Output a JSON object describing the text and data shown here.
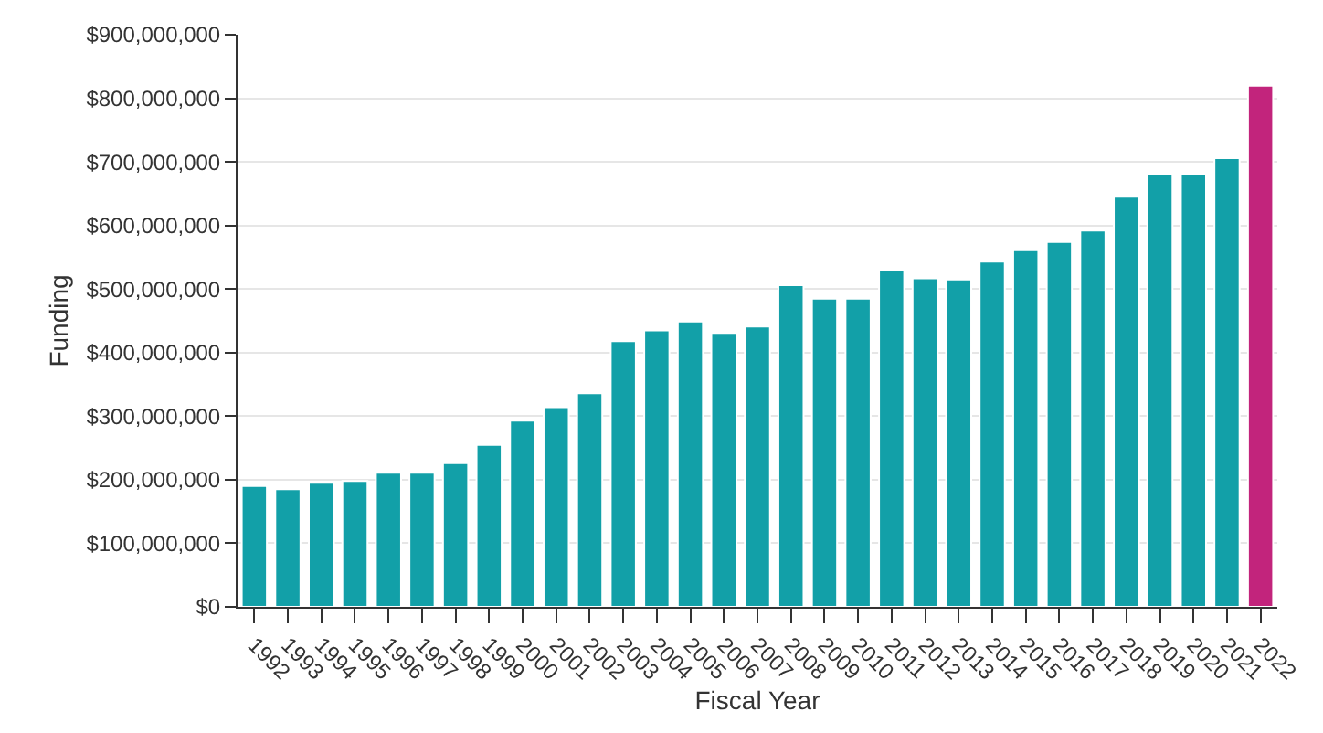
{
  "chart_data": {
    "type": "bar",
    "xlabel": "Fiscal Year",
    "ylabel": "Funding",
    "categories": [
      "1992",
      "1993",
      "1994",
      "1995",
      "1996",
      "1997",
      "1998",
      "1999",
      "2000",
      "2001",
      "2002",
      "2003",
      "2004",
      "2005",
      "2006",
      "2007",
      "2008",
      "2009",
      "2010",
      "2011",
      "2012",
      "2013",
      "2014",
      "2015",
      "2016",
      "2017",
      "2018",
      "2019",
      "2020",
      "2021",
      "2022"
    ],
    "values": [
      190000000,
      185000000,
      195000000,
      198000000,
      211000000,
      211000000,
      226000000,
      255000000,
      293000000,
      314000000,
      336000000,
      418000000,
      435000000,
      449000000,
      431000000,
      441000000,
      506000000,
      485000000,
      485000000,
      530000000,
      517000000,
      515000000,
      543000000,
      561000000,
      574000000,
      592000000,
      645000000,
      681000000,
      681000000,
      706000000,
      820000000
    ],
    "colors": [
      "#12a0a8",
      "#12a0a8",
      "#12a0a8",
      "#12a0a8",
      "#12a0a8",
      "#12a0a8",
      "#12a0a8",
      "#12a0a8",
      "#12a0a8",
      "#12a0a8",
      "#12a0a8",
      "#12a0a8",
      "#12a0a8",
      "#12a0a8",
      "#12a0a8",
      "#12a0a8",
      "#12a0a8",
      "#12a0a8",
      "#12a0a8",
      "#12a0a8",
      "#12a0a8",
      "#12a0a8",
      "#12a0a8",
      "#12a0a8",
      "#12a0a8",
      "#12a0a8",
      "#12a0a8",
      "#12a0a8",
      "#12a0a8",
      "#12a0a8",
      "#c2247c"
    ],
    "ylim": [
      0,
      900000000
    ],
    "yticks": [
      {
        "value": 0,
        "label": "$0"
      },
      {
        "value": 100000000,
        "label": "$100,000,000"
      },
      {
        "value": 200000000,
        "label": "$200,000,000"
      },
      {
        "value": 300000000,
        "label": "$300,000,000"
      },
      {
        "value": 400000000,
        "label": "$400,000,000"
      },
      {
        "value": 500000000,
        "label": "$500,000,000"
      },
      {
        "value": 600000000,
        "label": "$600,000,000"
      },
      {
        "value": 700000000,
        "label": "$700,000,000"
      },
      {
        "value": 800000000,
        "label": "$800,000,000"
      },
      {
        "value": 900000000,
        "label": "$900,000,000"
      }
    ],
    "grid": "y"
  }
}
